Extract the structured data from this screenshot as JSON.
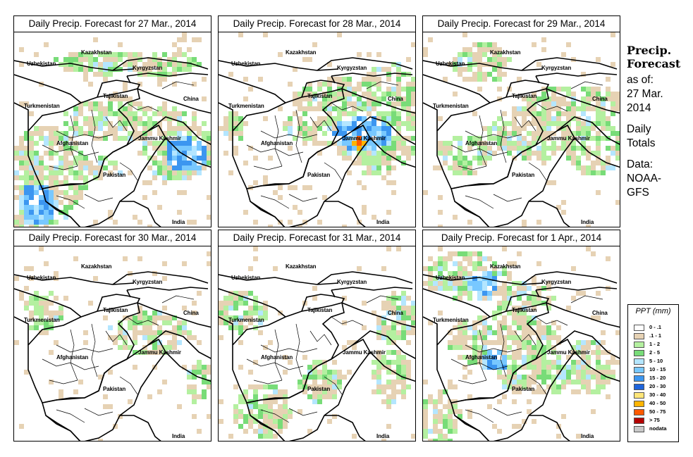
{
  "panels": [
    {
      "title": "Daily Precip. Forecast for  27 Mar., 2014"
    },
    {
      "title": "Daily Precip. Forecast for  28 Mar., 2014"
    },
    {
      "title": "Daily Precip. Forecast for  29 Mar., 2014"
    },
    {
      "title": "Daily Precip. Forecast for  30 Mar., 2014"
    },
    {
      "title": "Daily Precip. Forecast for  31 Mar., 2014"
    },
    {
      "title": "Daily Precip. Forecast for  1 Apr., 2014"
    }
  ],
  "map_labels": {
    "kazakhstan": "Kazakhstan",
    "uzbekistan": "Uzbekistan",
    "kyrgyzstan": "Kyrgyzstan",
    "tajikistan": "Tajikistan",
    "turkmenistan": "Turkmenistan",
    "china": "China",
    "afghanistan": "Afghanistan",
    "jammu_kashmir": "Jammu Kashmir",
    "pakistan": "Pakistan",
    "india": "India"
  },
  "sidebar": {
    "heading_line1": "Precip.",
    "heading_line2": "Forecast",
    "as_of": "as of:",
    "date_line1": "27 Mar.",
    "date_line2": "2014",
    "daily_line1": "Daily",
    "daily_line2": "Totals",
    "data_line1": "Data:",
    "data_line2": "NOAA-",
    "data_line3": "GFS"
  },
  "legend": {
    "title": "PPT (mm)",
    "items": [
      {
        "label": "0 - .1",
        "color": "#ffffff"
      },
      {
        "label": ".1 - 1",
        "color": "#e6d2b4"
      },
      {
        "label": "1 - 2",
        "color": "#b4f0a0"
      },
      {
        "label": "2 - 5",
        "color": "#78dc78"
      },
      {
        "label": "5 - 10",
        "color": "#b4e6ff"
      },
      {
        "label": "10 - 15",
        "color": "#78c8ff"
      },
      {
        "label": "15 - 20",
        "color": "#3c96f0"
      },
      {
        "label": "20 - 30",
        "color": "#1e64dc"
      },
      {
        "label": "30 - 40",
        "color": "#ffe678"
      },
      {
        "label": "40 - 50",
        "color": "#ffb400"
      },
      {
        "label": "50 - 75",
        "color": "#ff5a00"
      },
      {
        "label": "> 75",
        "color": "#b40000"
      },
      {
        "label": "nodata",
        "color": "#c8c8c8"
      }
    ]
  }
}
